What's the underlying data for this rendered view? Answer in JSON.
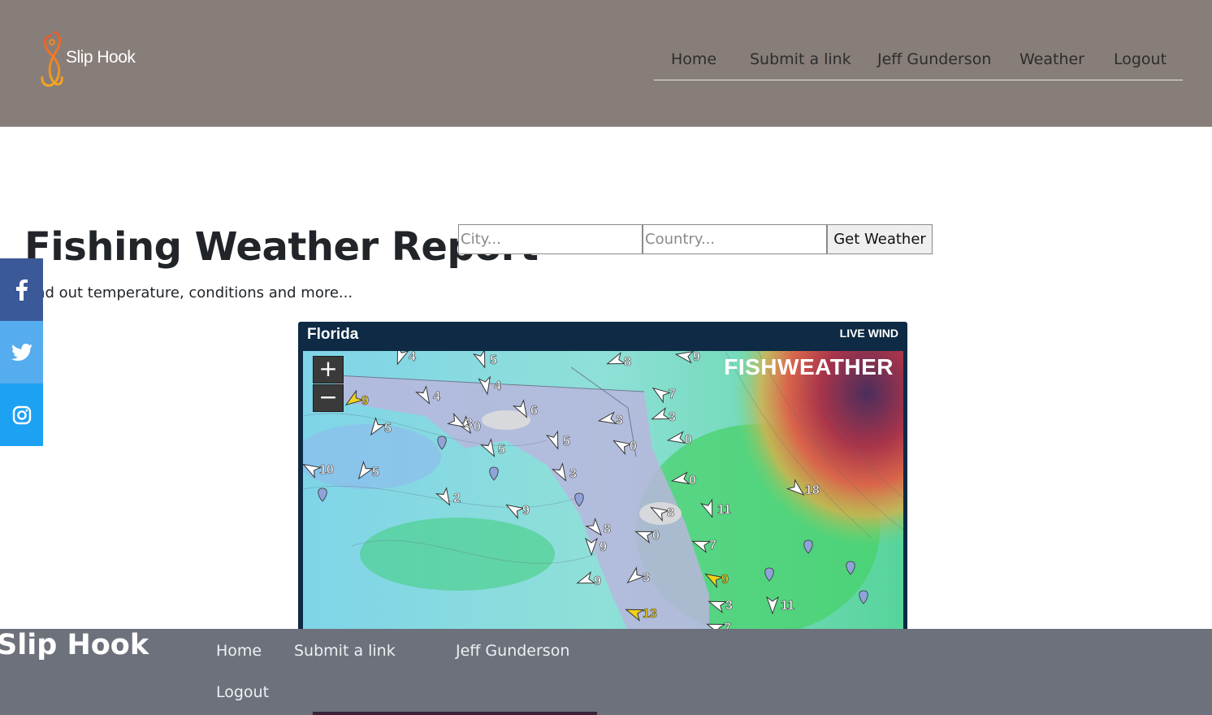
{
  "header": {
    "brand": "Slip Hook",
    "nav": [
      "Home",
      "Submit a link",
      "Jeff Gunderson",
      "Weather",
      "Logout"
    ]
  },
  "main": {
    "title": "Fishing Weather Report",
    "subtitle": "Find out temperature, conditions and more...",
    "city_placeholder": "City...",
    "country_placeholder": "Country...",
    "button": "Get Weather"
  },
  "social": [
    "facebook-icon",
    "twitter-icon",
    "instagram-icon"
  ],
  "widget": {
    "location": "Florida",
    "badge": "LIVE WIND",
    "brand": "FISHWEATHER",
    "zoom_in": "+",
    "zoom_out": "−",
    "wind_speeds": [
      "4",
      "5",
      "8",
      "9",
      "4",
      "4",
      "9",
      "6",
      "5",
      "0",
      "3",
      "7",
      "3",
      "0",
      "3",
      "5",
      "5",
      "0",
      "10",
      "5",
      "3",
      "0",
      "18",
      "2",
      "9",
      "8",
      "11",
      "8",
      "0",
      "7",
      "9",
      "9",
      "3",
      "9",
      "3",
      "11",
      "13",
      "7"
    ]
  },
  "footer": {
    "brand": "Slip Hook",
    "links": [
      "Home",
      "Submit a link",
      "Jeff Gunderson",
      "Logout"
    ]
  },
  "colors": {
    "header_bg": "#877e79",
    "footer_bg": "#6c717b",
    "widget_bg": "#0e2a44",
    "logo_accent": "#f08a24"
  }
}
